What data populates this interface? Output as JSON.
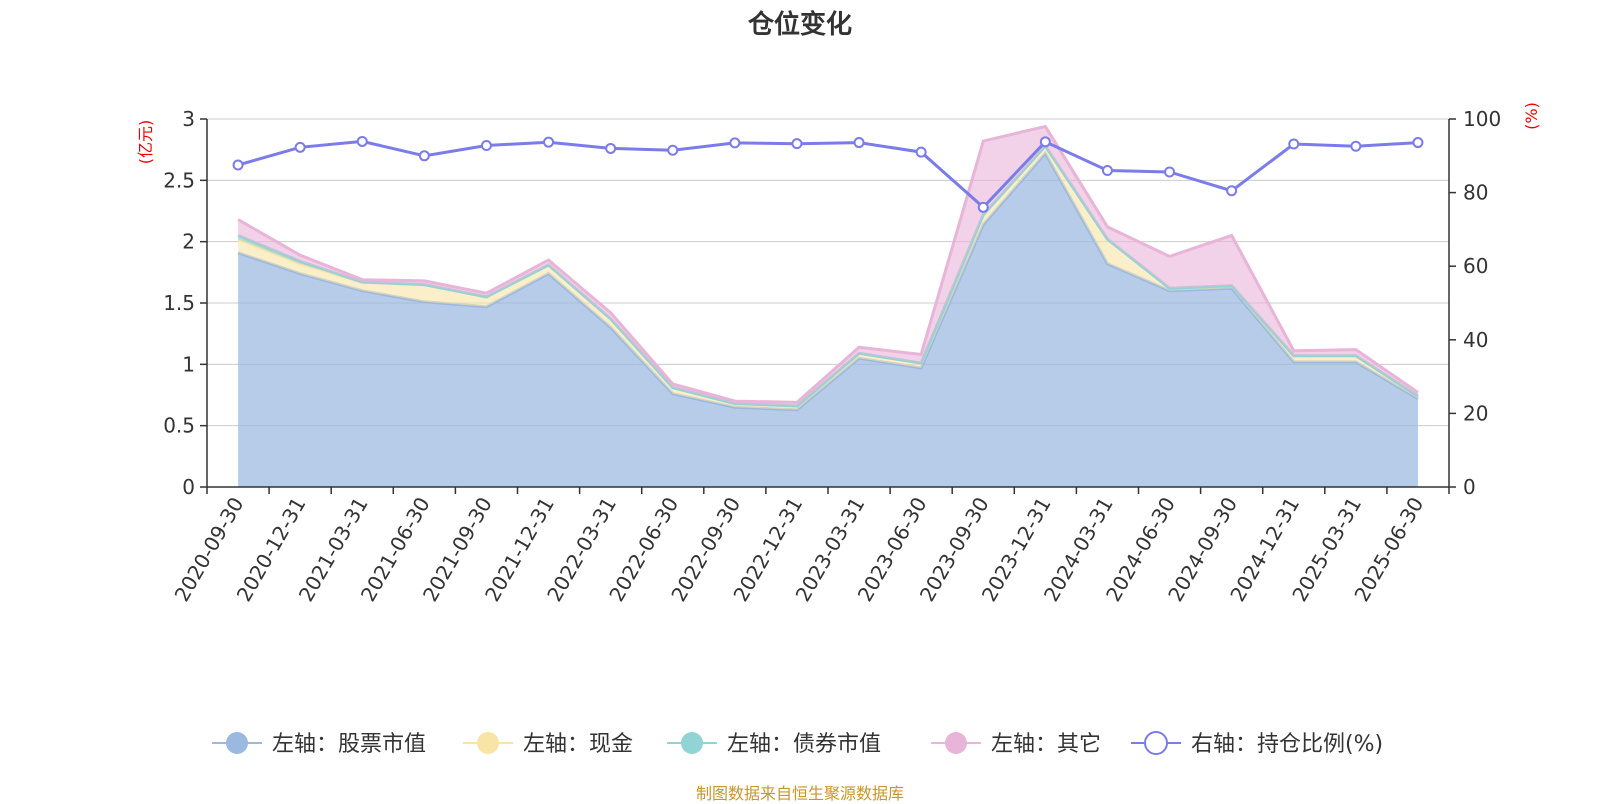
{
  "title": "仓位变化",
  "source": "制图数据来自恒生聚源数据库",
  "chart_data": {
    "type": "area",
    "x": [
      "2020-09-30",
      "2020-12-31",
      "2021-03-31",
      "2021-06-30",
      "2021-09-30",
      "2021-12-31",
      "2022-03-31",
      "2022-06-30",
      "2022-09-30",
      "2022-12-31",
      "2023-03-31",
      "2023-06-30",
      "2023-09-30",
      "2023-12-31",
      "2024-03-31",
      "2024-06-30",
      "2024-09-30",
      "2024-12-31",
      "2025-03-31",
      "2025-06-30"
    ],
    "left_axis": {
      "unit": "(亿元)",
      "ylim": [
        0,
        3
      ],
      "ticks": [
        "0",
        "0.5",
        "1",
        "1.5",
        "2",
        "2.5",
        "3"
      ]
    },
    "right_axis": {
      "unit": "(%)",
      "ylim": [
        0,
        100
      ],
      "ticks": [
        "0",
        "20",
        "40",
        "60",
        "80",
        "100"
      ]
    },
    "series": [
      {
        "name": "左轴：股票市值",
        "axis": "left",
        "color": "#9bb8e0",
        "values": [
          1.91,
          1.74,
          1.6,
          1.51,
          1.47,
          1.74,
          1.3,
          0.76,
          0.65,
          0.63,
          1.05,
          0.97,
          2.14,
          2.72,
          1.82,
          1.6,
          1.62,
          1.02,
          1.02,
          0.72
        ]
      },
      {
        "name": "左轴：现金",
        "axis": "left",
        "color": "#f8e5a6",
        "values": [
          0.11,
          0.08,
          0.07,
          0.14,
          0.08,
          0.07,
          0.07,
          0.05,
          0.03,
          0.03,
          0.04,
          0.04,
          0.08,
          0.06,
          0.2,
          0.02,
          0.02,
          0.05,
          0.05,
          0.02
        ]
      },
      {
        "name": "左轴：债券市值",
        "axis": "left",
        "color": "#92d4d6",
        "values": [
          0.03,
          0.02,
          0.0,
          0.0,
          0.0,
          0.0,
          0.0,
          0.0,
          0.0,
          0.0,
          0.0,
          0.0,
          0.0,
          0.0,
          0.0,
          0.0,
          0.0,
          0.0,
          0.0,
          0.0
        ]
      },
      {
        "name": "左轴：其它",
        "axis": "left",
        "color": "#e8b4d8",
        "values": [
          0.13,
          0.05,
          0.02,
          0.03,
          0.03,
          0.04,
          0.05,
          0.03,
          0.02,
          0.03,
          0.05,
          0.07,
          0.6,
          0.16,
          0.1,
          0.26,
          0.41,
          0.04,
          0.05,
          0.03
        ]
      },
      {
        "name": "右轴：持仓比例(%)",
        "axis": "right",
        "color": "#7b7bea",
        "values": [
          87.5,
          92.3,
          93.9,
          90.0,
          92.8,
          93.7,
          92.0,
          91.5,
          93.5,
          93.3,
          93.6,
          91.0,
          76.0,
          93.8,
          86.0,
          85.6,
          80.5,
          93.2,
          92.6,
          93.6
        ]
      }
    ],
    "legend_position": "bottom",
    "grid": true
  }
}
